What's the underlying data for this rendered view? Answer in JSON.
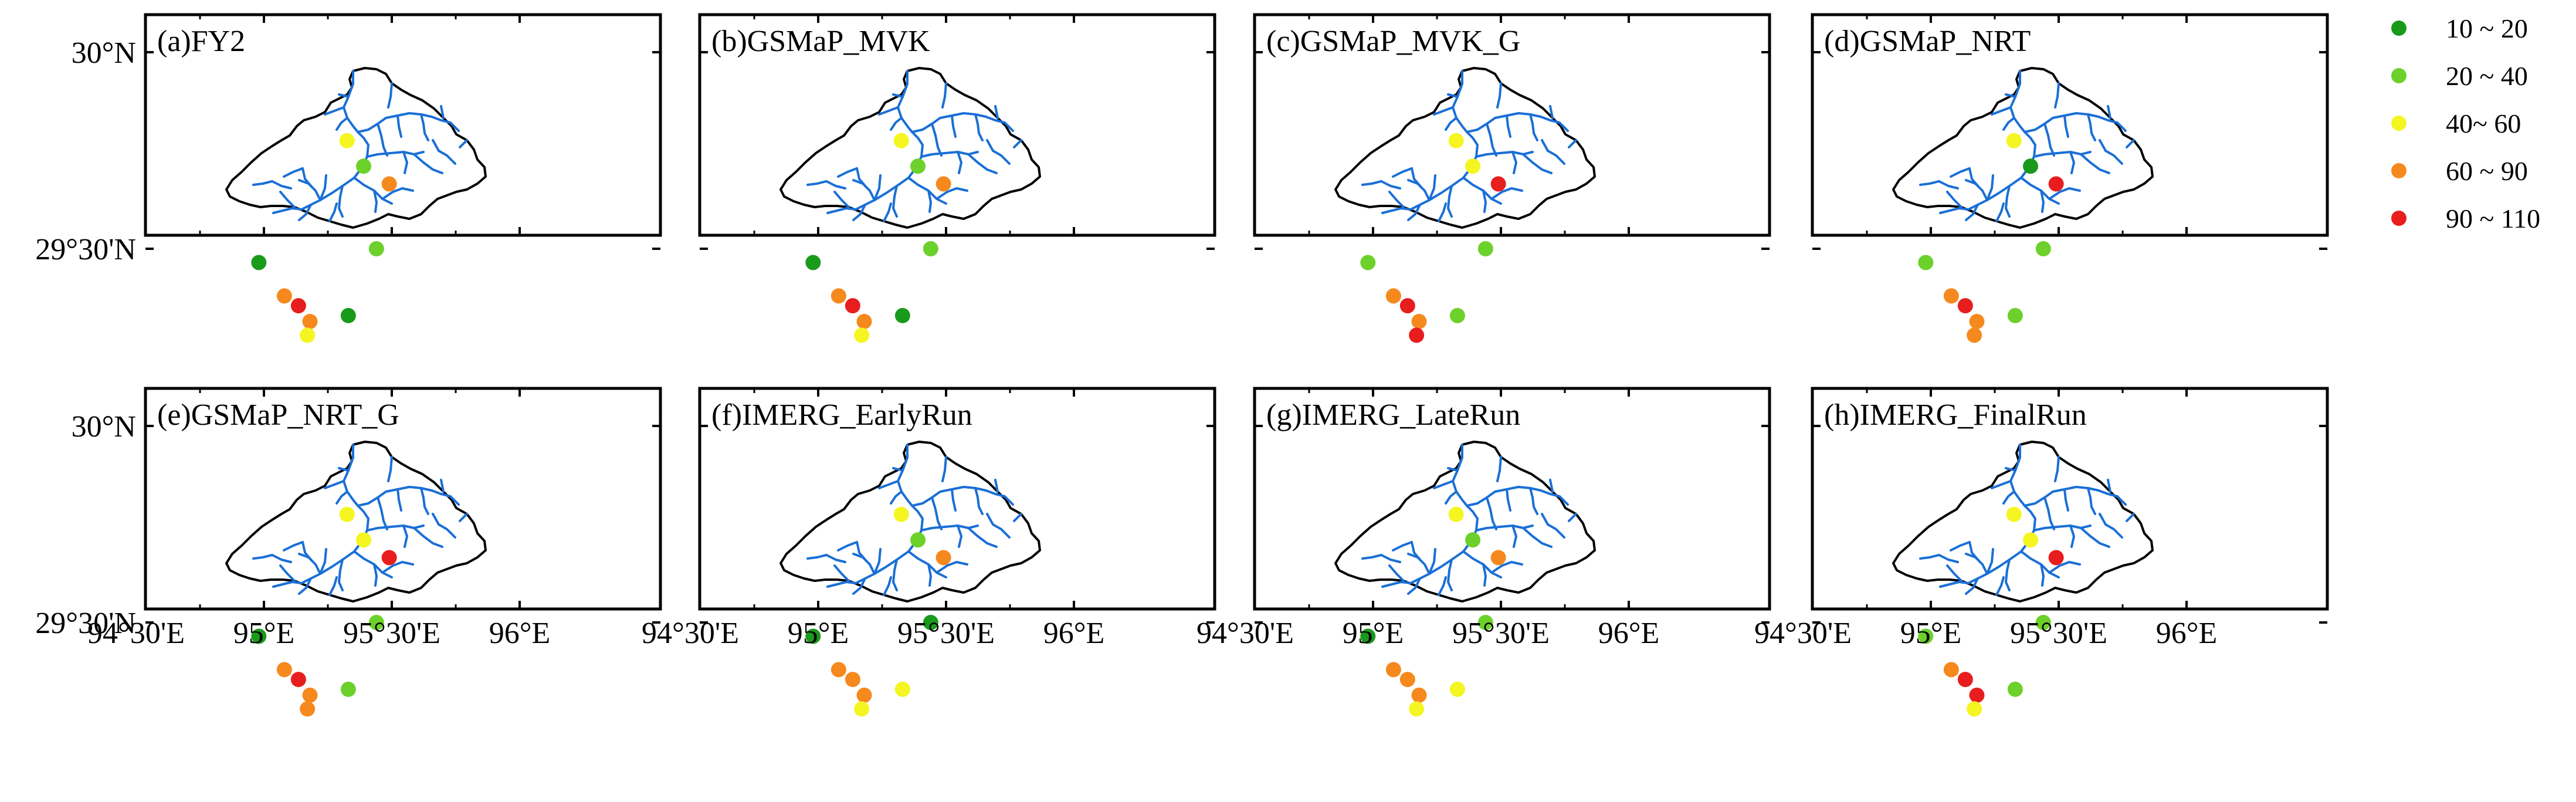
{
  "lat_ticks": [
    "30°N",
    "29°30'N"
  ],
  "lon_ticks": [
    "94°30'E",
    "95°E",
    "95°30'E",
    "96°E"
  ],
  "panels": [
    {
      "title": "(a)FY2"
    },
    {
      "title": "(b)GSMaP_MVK"
    },
    {
      "title": "(c)GSMaP_MVK_G"
    },
    {
      "title": "(d)GSMaP_NRT"
    },
    {
      "title": "(e)GSMaP_NRT_G"
    },
    {
      "title": "(f)IMERG_EarlyRun"
    },
    {
      "title": "(g)IMERG_LateRun"
    },
    {
      "title": "(h)IMERG_FinalRun"
    }
  ],
  "legend": {
    "items": [
      {
        "label": "10 ~ 20",
        "color": "#1a9a1a"
      },
      {
        "label": "20 ~ 40",
        "color": "#6cd12a"
      },
      {
        "label": "40~ 60",
        "color": "#f5f521"
      },
      {
        "label": "60 ~ 90",
        "color": "#f5891e"
      },
      {
        "label": "90 ~ 110",
        "color": "#e81d1d"
      }
    ]
  },
  "colors": {
    "river": "#1a6fd6",
    "basin_outline": "#000000",
    "frame": "#000000"
  },
  "chart_data": {
    "type": "map",
    "description_units": "station symbols colored by class",
    "xlim": [
      94.5,
      96.167
    ],
    "ylim": [
      29.05,
      30.2
    ],
    "stations": [
      {
        "lon": 94.98,
        "lat": 29.465
      },
      {
        "lon": 95.08,
        "lat": 29.38
      },
      {
        "lon": 95.135,
        "lat": 29.355
      },
      {
        "lon": 95.18,
        "lat": 29.315
      },
      {
        "lon": 95.17,
        "lat": 29.28
      },
      {
        "lon": 95.33,
        "lat": 29.33
      },
      {
        "lon": 95.44,
        "lat": 29.5
      },
      {
        "lon": 95.49,
        "lat": 29.665
      },
      {
        "lon": 95.39,
        "lat": 29.71
      },
      {
        "lon": 95.325,
        "lat": 29.775
      }
    ],
    "series": [
      {
        "panel": "(a)FY2",
        "classes": [
          0,
          3,
          4,
          3,
          2,
          0,
          1,
          3,
          1,
          2
        ]
      },
      {
        "panel": "(b)GSMaP_MVK",
        "classes": [
          0,
          3,
          4,
          3,
          2,
          0,
          1,
          3,
          1,
          2
        ]
      },
      {
        "panel": "(c)GSMaP_MVK_G",
        "classes": [
          1,
          3,
          4,
          3,
          4,
          1,
          1,
          4,
          2,
          2
        ]
      },
      {
        "panel": "(d)GSMaP_NRT",
        "classes": [
          1,
          3,
          4,
          3,
          3,
          1,
          1,
          4,
          0,
          2
        ]
      },
      {
        "panel": "(e)GSMaP_NRT_G",
        "classes": [
          0,
          3,
          4,
          3,
          3,
          1,
          1,
          4,
          2,
          2
        ]
      },
      {
        "panel": "(f)IMERG_EarlyRun",
        "classes": [
          0,
          3,
          3,
          3,
          2,
          2,
          0,
          3,
          1,
          2
        ]
      },
      {
        "panel": "(g)IMERG_LateRun",
        "classes": [
          0,
          3,
          3,
          3,
          2,
          2,
          1,
          3,
          1,
          2
        ]
      },
      {
        "panel": "(h)IMERG_FinalRun",
        "classes": [
          1,
          3,
          4,
          4,
          2,
          1,
          1,
          4,
          2,
          2
        ]
      }
    ]
  }
}
